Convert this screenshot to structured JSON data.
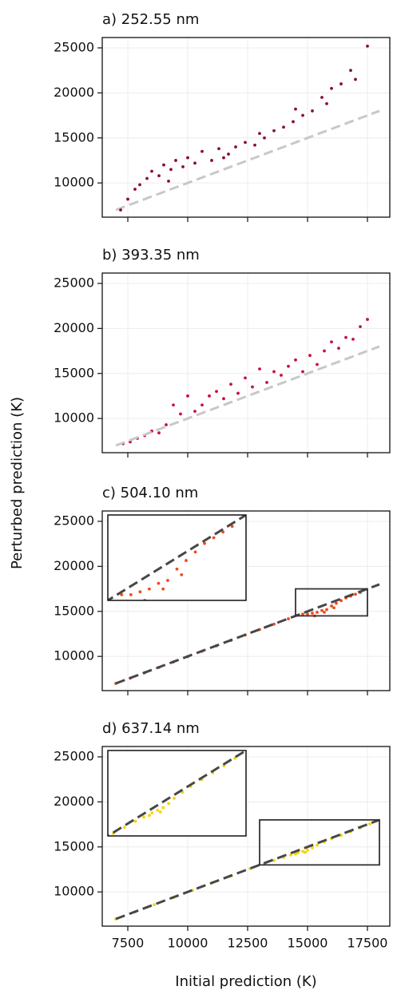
{
  "xlabel": "Initial prediction (K)",
  "ylabel": "Perturbed prediction (K)",
  "chart_data": [
    {
      "type": "scatter",
      "title": "a) 252.55 nm",
      "color": "#8b0a3c",
      "x": [
        7200,
        7500,
        7800,
        8000,
        8300,
        8500,
        8800,
        9000,
        9300,
        9500,
        9800,
        10000,
        10300,
        10600,
        11000,
        11300,
        11700,
        12000,
        12400,
        12800,
        13200,
        13600,
        14000,
        14400,
        14800,
        15200,
        15600,
        16000,
        16400,
        16800,
        17000,
        17500,
        9200,
        11500,
        13000,
        14500,
        15800
      ],
      "y": [
        7000,
        8200,
        9300,
        9800,
        10500,
        11300,
        10800,
        12000,
        11500,
        12500,
        11800,
        12800,
        12200,
        13500,
        12500,
        13800,
        13200,
        14000,
        14500,
        14200,
        15000,
        15800,
        16200,
        16800,
        17500,
        18000,
        19500,
        20500,
        21000,
        22500,
        21500,
        25200,
        10200,
        12800,
        15500,
        18200,
        18800
      ],
      "diagonal": {
        "x": [
          7000,
          18000
        ],
        "y": [
          7000,
          18000
        ],
        "color": "#c8c8c8",
        "on_top": false
      },
      "xlim": [
        6433,
        18433
      ],
      "ylim": [
        6200,
        26150
      ],
      "xticks": [
        7500,
        10000,
        12500,
        15000,
        17500
      ],
      "yticks": [
        10000,
        15000,
        20000,
        25000
      ],
      "grid": true,
      "show_xtick_labels": false
    },
    {
      "type": "scatter",
      "title": "b) 393.35 nm",
      "color": "#c8103f",
      "x": [
        7300,
        7600,
        7900,
        8200,
        8500,
        8800,
        9100,
        9400,
        9700,
        10000,
        10300,
        10600,
        10900,
        11200,
        11500,
        11800,
        12100,
        12400,
        12700,
        13000,
        13300,
        13600,
        13900,
        14200,
        14500,
        14800,
        15100,
        15400,
        15700,
        16000,
        16300,
        16600,
        16900,
        17200,
        17500
      ],
      "y": [
        7200,
        7400,
        7800,
        8100,
        8600,
        8400,
        9300,
        11500,
        10500,
        12500,
        10800,
        11500,
        12500,
        13000,
        12200,
        13800,
        12800,
        14500,
        13500,
        15500,
        14000,
        15200,
        14800,
        15800,
        16500,
        15200,
        17000,
        16000,
        17500,
        18500,
        17800,
        19000,
        18800,
        20200,
        21000
      ],
      "diagonal": {
        "x": [
          7000,
          18000
        ],
        "y": [
          7000,
          18000
        ],
        "color": "#c8c8c8",
        "on_top": true
      },
      "xlim": [
        6433,
        18433
      ],
      "ylim": [
        6200,
        26150
      ],
      "xticks": [
        7500,
        10000,
        12500,
        15000,
        17500
      ],
      "yticks": [
        10000,
        15000,
        20000,
        25000
      ],
      "grid": true,
      "show_xtick_labels": false
    },
    {
      "type": "scatter",
      "title": "c) 504.10 nm",
      "color": "#f04a1a",
      "x": [
        7000,
        7600,
        8200,
        8800,
        9400,
        10000,
        10600,
        11200,
        11800,
        12400,
        13000,
        13600,
        14200,
        14800,
        15000,
        15200,
        15400,
        15600,
        15800,
        16000,
        16200,
        16400,
        16600,
        16800,
        17000,
        17200,
        15300,
        15700,
        16100
      ],
      "y": [
        7000,
        7580,
        8180,
        8780,
        9380,
        9980,
        10580,
        11180,
        11780,
        12380,
        12980,
        13580,
        14180,
        14700,
        14700,
        14800,
        14900,
        15100,
        15200,
        15600,
        15900,
        16200,
        16500,
        16700,
        16900,
        17100,
        14500,
        14900,
        15400
      ],
      "diagonal": {
        "x": [
          7000,
          18000
        ],
        "y": [
          7000,
          18000
        ],
        "color": "#474747",
        "on_top": true
      },
      "inset": {
        "xlim": [
          14500,
          17500
        ],
        "ylim": [
          14500,
          17500
        ]
      },
      "xlim": [
        6433,
        18433
      ],
      "ylim": [
        6200,
        26150
      ],
      "xticks": [
        7500,
        10000,
        12500,
        15000,
        17500
      ],
      "yticks": [
        10000,
        15000,
        20000,
        25000
      ],
      "grid": true,
      "show_xtick_labels": false
    },
    {
      "type": "scatter",
      "title": "d) 637.14 nm",
      "color": "#f5d400",
      "x": [
        7000,
        7800,
        8600,
        9400,
        10200,
        11000,
        11800,
        12600,
        13200,
        13600,
        14000,
        14300,
        14600,
        14800,
        15000,
        15200,
        15400,
        15700,
        16000,
        16400,
        16800,
        17200,
        17600,
        14500,
        14900
      ],
      "y": [
        7000,
        7780,
        8580,
        9380,
        10180,
        10980,
        11780,
        12580,
        13150,
        13500,
        13850,
        14100,
        14350,
        14500,
        14650,
        14900,
        15200,
        15550,
        15900,
        16300,
        16700,
        17100,
        17550,
        14200,
        14400
      ],
      "diagonal": {
        "x": [
          7000,
          18000
        ],
        "y": [
          7000,
          18000
        ],
        "color": "#474747",
        "on_top": true
      },
      "inset": {
        "xlim": [
          13000,
          18000
        ],
        "ylim": [
          13000,
          18000
        ]
      },
      "xlim": [
        6433,
        18433
      ],
      "ylim": [
        6200,
        26150
      ],
      "xticks": [
        7500,
        10000,
        12500,
        15000,
        17500
      ],
      "yticks": [
        10000,
        15000,
        20000,
        25000
      ],
      "grid": true,
      "show_xtick_labels": true
    }
  ]
}
